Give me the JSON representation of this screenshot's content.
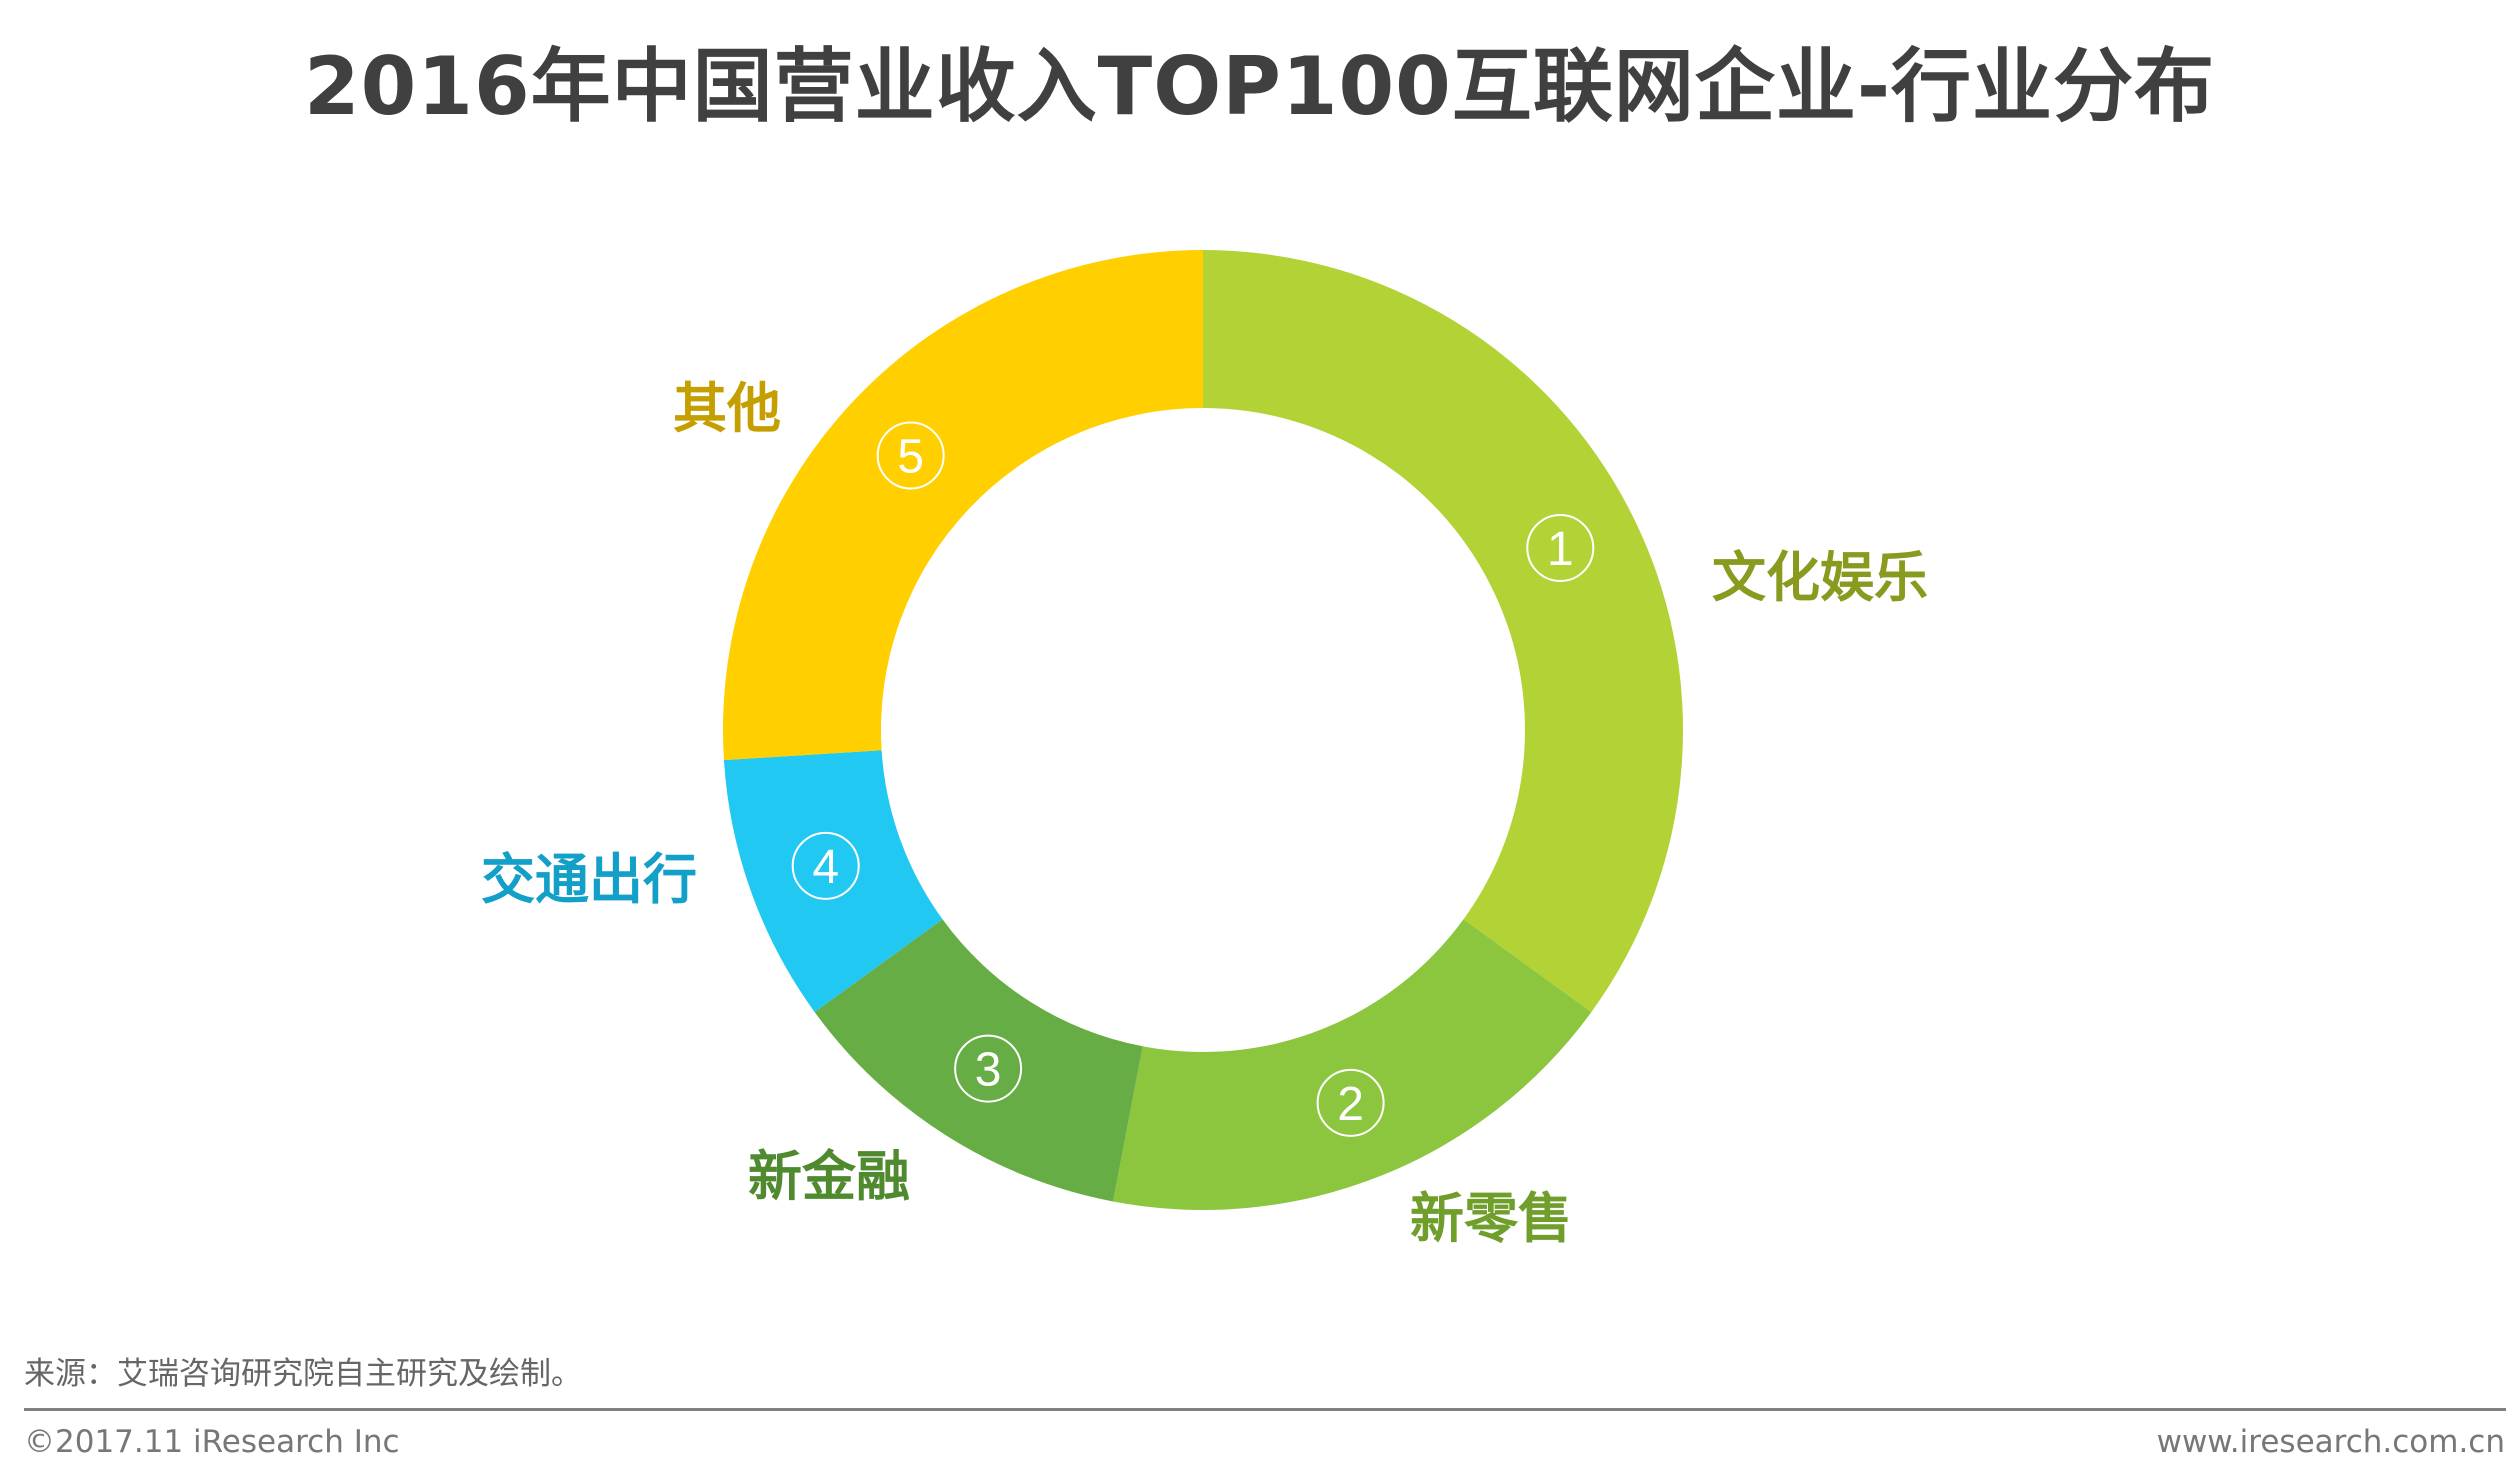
{
  "title": "2016年中国营业收入TOP100互联网企业-行业分布",
  "chart_data": {
    "type": "pie",
    "title": "2016年中国营业收入TOP100互联网企业-行业分布",
    "donut": true,
    "start": "top",
    "direction": "clockwise",
    "categories": [
      "文化娱乐",
      "新零售",
      "新金融",
      "交通出行",
      "其他"
    ],
    "markers": [
      "①",
      "②",
      "③",
      "④",
      "⑤"
    ],
    "values": [
      35,
      18,
      12,
      9,
      26
    ],
    "colors": [
      "#b2d235",
      "#8cc63f",
      "#66ad45",
      "#21c8f2",
      "#ffcf00"
    ],
    "label_colors": [
      "#8a9a1e",
      "#6f9e2a",
      "#4f8a2e",
      "#12a0c8",
      "#c59f00"
    ]
  },
  "footer": {
    "source": "来源：艾瑞咨询研究院自主研究及绘制。",
    "copyright": "©2017.11 iResearch Inc",
    "website": "www.iresearch.com.cn"
  }
}
